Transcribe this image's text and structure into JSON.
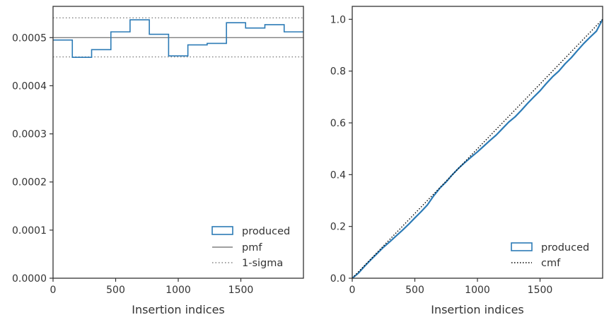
{
  "chart_data": [
    {
      "type": "step-histogram",
      "xlabel": "Insertion indices",
      "ylabel": "",
      "xlim": [
        0,
        2000
      ],
      "ylim": [
        0,
        0.000565
      ],
      "xticks": [
        0,
        500,
        1000,
        1500
      ],
      "xtick_labels": [
        "0",
        "500",
        "1000",
        "1500"
      ],
      "yticks": [
        0,
        0.0001,
        0.0002,
        0.0003,
        0.0004,
        0.0005
      ],
      "ytick_labels": [
        "0.0000",
        "0.0001",
        "0.0002",
        "0.0003",
        "0.0004",
        "0.0005"
      ],
      "grid": false,
      "legend_position": "lower-right",
      "series": [
        {
          "name": "produced",
          "style": "step",
          "color": "#2c7bb6",
          "bin_edges": [
            0,
            154,
            308,
            462,
            615,
            769,
            923,
            1077,
            1231,
            1385,
            1538,
            1692,
            1846,
            2000
          ],
          "values": [
            0.000495,
            0.000459,
            0.000475,
            0.000512,
            0.000537,
            0.000507,
            0.000462,
            0.000485,
            0.000488,
            0.000531,
            0.00052,
            0.000527,
            0.000512
          ]
        },
        {
          "name": "pmf",
          "style": "solid",
          "color": "#808080",
          "y": 0.0005
        },
        {
          "name": "1-sigma",
          "style": "dotted",
          "color": "#808080",
          "y": [
            0.00046,
            0.000541
          ]
        }
      ]
    },
    {
      "type": "line",
      "xlabel": "Insertion indices",
      "ylabel": "",
      "xlim": [
        0,
        2000
      ],
      "ylim": [
        0,
        1.05
      ],
      "xticks": [
        0,
        500,
        1000,
        1500
      ],
      "xtick_labels": [
        "0",
        "500",
        "1000",
        "1500"
      ],
      "yticks": [
        0,
        0.2,
        0.4,
        0.6,
        0.8,
        1.0
      ],
      "ytick_labels": [
        "0.0",
        "0.2",
        "0.4",
        "0.6",
        "0.8",
        "1.0"
      ],
      "grid": false,
      "legend_position": "lower-right",
      "series": [
        {
          "name": "produced",
          "style": "solid",
          "color": "#2c7bb6",
          "x": [
            0,
            50,
            100,
            150,
            200,
            250,
            300,
            350,
            400,
            450,
            500,
            550,
            600,
            650,
            700,
            750,
            800,
            850,
            900,
            950,
            1000,
            1050,
            1100,
            1150,
            1200,
            1250,
            1300,
            1350,
            1400,
            1450,
            1500,
            1550,
            1600,
            1650,
            1700,
            1750,
            1800,
            1850,
            1900,
            1950,
            2000
          ],
          "y": [
            0,
            0.02,
            0.047,
            0.072,
            0.096,
            0.12,
            0.141,
            0.163,
            0.185,
            0.208,
            0.233,
            0.257,
            0.283,
            0.318,
            0.348,
            0.372,
            0.4,
            0.425,
            0.447,
            0.468,
            0.488,
            0.51,
            0.532,
            0.553,
            0.578,
            0.603,
            0.623,
            0.648,
            0.675,
            0.7,
            0.724,
            0.752,
            0.778,
            0.8,
            0.828,
            0.852,
            0.88,
            0.907,
            0.931,
            0.954,
            1.0
          ]
        },
        {
          "name": "cmf",
          "style": "dotted",
          "color": "#000000",
          "x": [
            0,
            2000
          ],
          "y": [
            0,
            1.0
          ]
        }
      ]
    }
  ]
}
